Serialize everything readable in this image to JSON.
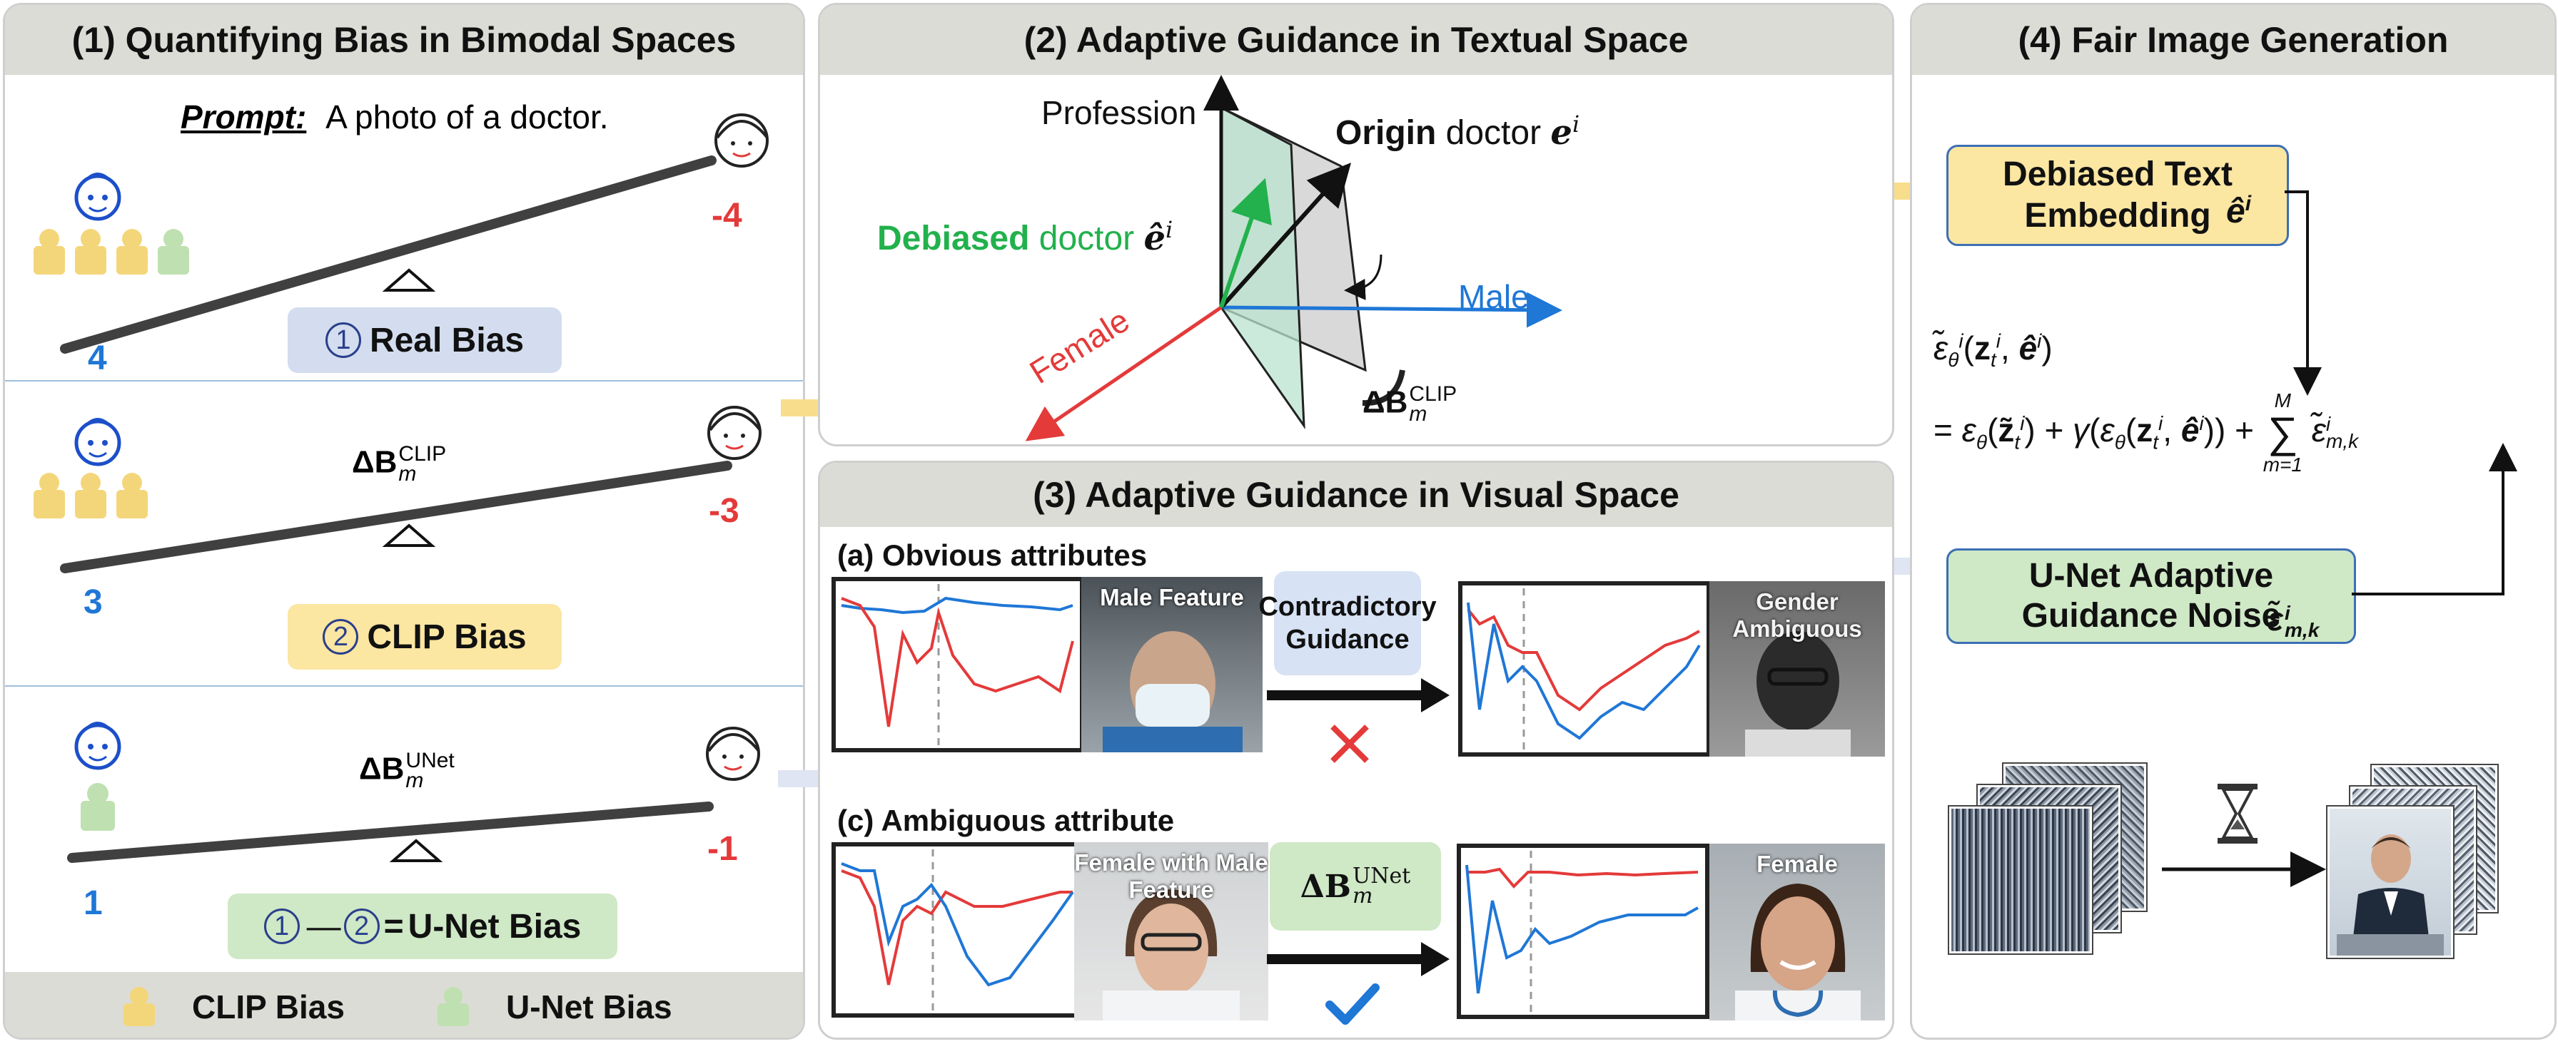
{
  "panel1": {
    "title": "(1) Quantifying Bias in Bimodal Spaces",
    "prompt_label": "Prompt:",
    "prompt_text": "A photo of a doctor.",
    "rows": [
      {
        "left_value": "4",
        "right_value": "-4",
        "label_num": "1",
        "label": "Real Bias",
        "formula_sub": "",
        "formula_sup": ""
      },
      {
        "left_value": "3",
        "right_value": "-3",
        "label_num": "2",
        "label": "CLIP Bias",
        "formula_sub": "m",
        "formula_sup": "CLIP"
      },
      {
        "left_value": "1",
        "right_value": "-1",
        "label": "U-Net Bias",
        "formula_sub": "m",
        "formula_sup": "UNet"
      }
    ],
    "unet_formula": {
      "a": "1",
      "minus": "—",
      "b": "2",
      "equals": "="
    },
    "legend": {
      "clip": "CLIP Bias",
      "unet": "U-Net Bias"
    },
    "formula_main": "ΔB"
  },
  "panel2": {
    "title": "(2) Adaptive Guidance in Textual Space",
    "profession": "Profession",
    "origin_bold": "Origin",
    "origin_rest": " doctor ",
    "origin_sym": "e",
    "origin_sup": "i",
    "debiased_green": "Debiased",
    "debiased_rest": " doctor ",
    "debiased_sym": "ê",
    "debiased_sup": "i",
    "male": "Male",
    "female": "Female",
    "delta_main": "ΔB",
    "delta_sub": "m",
    "delta_sup": "CLIP"
  },
  "panel3": {
    "title": "(3) Adaptive Guidance in Visual Space",
    "section_a": "(a) Obvious attributes",
    "section_c": "(c) Ambiguous attribute",
    "img_male_feature": "Male Feature",
    "img_gender_ambiguous": "Gender Ambiguous",
    "img_female_male": "Female with Male Feature",
    "img_female": "Female",
    "contradictory": "Contradictory Guidance",
    "delta_main": "ΔB",
    "delta_sub": "m",
    "delta_sup": "UNet"
  },
  "panel4": {
    "title": "(4) Fair Image Generation",
    "debiased_box": "Debiased Text Embedding",
    "debiased_sym": "ê",
    "debiased_sup": "i",
    "unet_box": "U-Net Adaptive Guidance Noise",
    "unet_sym": "ε̃",
    "unet_sup": "i",
    "unet_sub": "m,k",
    "eq_line1": "ε̃",
    "eq_line1_args": "(z",
    "eq_line2": "= ε",
    "sum_top": "M",
    "sum_bottom": "m=1"
  },
  "colors": {
    "blue": "#1f77d6",
    "red": "#e43a3a",
    "green": "#22b14c",
    "yellow_box": "#fbe6a2",
    "green_box": "#cfe8c6",
    "blue_box": "#d3ddef",
    "arrow_yellow": "#f8dd8c",
    "arrow_blue": "#dfe5f2"
  },
  "icons": [
    "male-face-icon",
    "female-face-icon",
    "person-yellow-icon",
    "person-green-icon",
    "fulcrum-icon",
    "hourglass-icon",
    "cross-icon",
    "check-icon"
  ]
}
